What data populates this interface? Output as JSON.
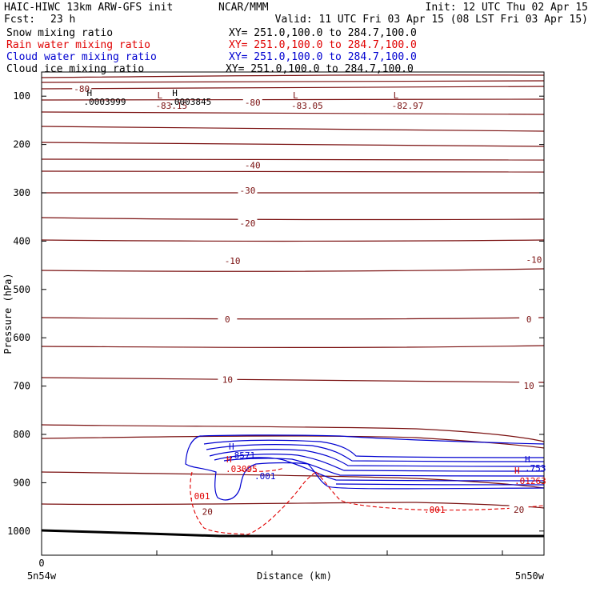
{
  "header": {
    "title": "HAIC-HIWC 13km ARW-GFS init",
    "org": "NCAR/MMM",
    "init": "Init: 12 UTC Thu 02 Apr 15",
    "fcst_label": "Fcst:",
    "fcst_value": "23 h",
    "valid": "Valid: 11 UTC Fri 03 Apr 15 (08 LST Fri 03 Apr 15)"
  },
  "legend": [
    {
      "label": "Snow mixing ratio",
      "xy": "XY= 251.0,100.0 to 284.7,100.0",
      "color": "#000000"
    },
    {
      "label": "Rain water mixing ratio",
      "xy": "XY= 251.0,100.0 to 284.7,100.0",
      "color": "#e00000"
    },
    {
      "label": "Cloud water mixing ratio",
      "xy": "XY= 251.0,100.0 to 284.7,100.0",
      "color": "#0000d0"
    },
    {
      "label": "Cloud ice mixing ratio",
      "xy": "XY= 251.0,100.0 to 284.7,100.0",
      "color": "#000000"
    }
  ],
  "colors": {
    "temperature": "#7a1010",
    "cloud_water": "#0000d0",
    "rain": "#e00000",
    "terrain": "#000000"
  },
  "chart_data": {
    "type": "cross-section contour",
    "ylabel": "Pressure (hPa)",
    "xlabel": "Distance (km)",
    "y_ticks": [
      "100",
      "200",
      "300",
      "400",
      "500",
      "600",
      "700",
      "800",
      "900",
      "1000"
    ],
    "x_start_tick": "0",
    "x_left_label": "5n54w",
    "x_right_label": "5n50w",
    "ylim": [
      1050,
      50
    ],
    "temperature_levels": [
      -80,
      -70,
      -60,
      -50,
      -40,
      -30,
      -20,
      -10,
      0,
      10,
      20
    ],
    "temperature_contour_labels": [
      {
        "text": "-80",
        "x": 0.08,
        "p": 85
      },
      {
        "text": "-80",
        "x": 0.42,
        "p": 113
      },
      {
        "text": "-40",
        "x": 0.42,
        "p": 243
      },
      {
        "text": "-30",
        "x": 0.41,
        "p": 295
      },
      {
        "text": "-20",
        "x": 0.41,
        "p": 363
      },
      {
        "text": "-10",
        "x": 0.38,
        "p": 441
      },
      {
        "text": "-10",
        "x": 0.98,
        "p": 438
      },
      {
        "text": "0",
        "x": 0.37,
        "p": 562
      },
      {
        "text": "0",
        "x": 0.97,
        "p": 562
      },
      {
        "text": "10",
        "x": 0.37,
        "p": 687
      },
      {
        "text": "10",
        "x": 0.97,
        "p": 699
      },
      {
        "text": "20",
        "x": 0.33,
        "p": 960
      },
      {
        "text": "20",
        "x": 0.95,
        "p": 956
      }
    ],
    "extrema": [
      {
        "type": "H",
        "value": ".0003999",
        "x": 0.09,
        "p": 100
      },
      {
        "type": "L",
        "value": "-83.15",
        "x": 0.23,
        "p": 108
      },
      {
        "type": "H",
        "value": ".0003845",
        "x": 0.26,
        "p": 100
      },
      {
        "type": "L",
        "value": "-83.05",
        "x": 0.5,
        "p": 108
      },
      {
        "type": "L",
        "value": "-82.97",
        "x": 0.7,
        "p": 108
      }
    ],
    "cloud_water": {
      "max_label": "H",
      "max_value": ".8571",
      "contour_label": ".001",
      "right_max_value": ".753"
    },
    "rain_water": {
      "max_label": "H",
      "max_value": ".03095",
      "contour_label": ".001",
      "right_max_value": ".01263"
    }
  }
}
